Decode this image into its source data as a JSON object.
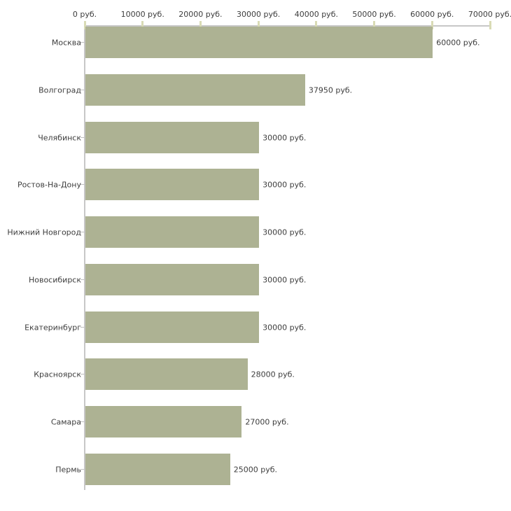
{
  "chart_data": {
    "type": "bar",
    "orientation": "horizontal",
    "title": "",
    "xlabel": "",
    "ylabel": "",
    "grid": "off",
    "legend": "none",
    "categories": [
      "Москва",
      "Волгоград",
      "Челябинск",
      "Ростов-На-Дону",
      "Нижний Новгород",
      "Новосибирск",
      "Екатеринбург",
      "Красноярск",
      "Самара",
      "Пермь"
    ],
    "values": [
      60000,
      37950,
      30000,
      30000,
      30000,
      30000,
      30000,
      28000,
      27000,
      25000
    ],
    "value_labels": [
      "60000 руб.",
      "37950 руб.",
      "30000 руб.",
      "30000 руб.",
      "30000 руб.",
      "30000 руб.",
      "30000 руб.",
      "28000 руб.",
      "27000 руб.",
      "25000 руб."
    ],
    "x_axis": {
      "position": "top",
      "min": 0,
      "max": 70000,
      "ticks": [
        0,
        10000,
        20000,
        30000,
        40000,
        50000,
        60000,
        70000
      ],
      "tick_labels": [
        "0 руб.",
        "10000 руб.",
        "20000 руб.",
        "30000 руб.",
        "40000 руб.",
        "50000 руб.",
        "60000 руб.",
        "70000 руб."
      ]
    },
    "colors": {
      "bar": "#adb293",
      "axis_line": "#c7c7c7",
      "tick_mark": "#d9dbb5",
      "category_tick": "#c0c0c0",
      "text": "#3d3d3d",
      "background": "#ffffff"
    }
  }
}
